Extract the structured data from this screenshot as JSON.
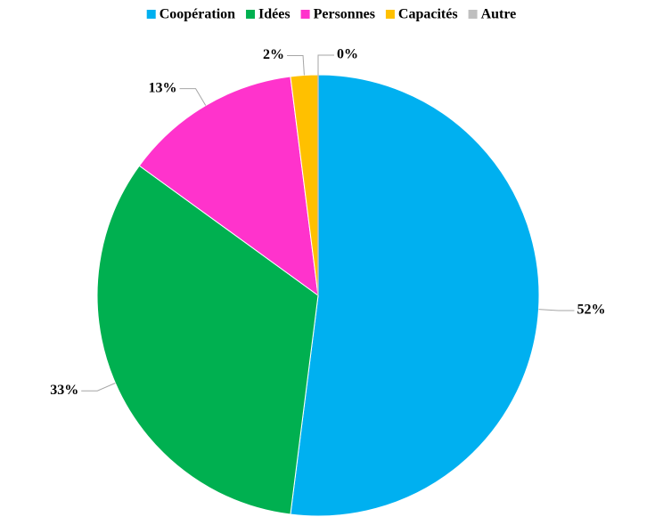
{
  "chart_data": {
    "type": "pie",
    "categories": [
      "Coopération",
      "Idées",
      "Personnes",
      "Capacités",
      "Autre"
    ],
    "values": [
      52,
      33,
      13,
      2,
      0
    ],
    "value_labels": [
      "52%",
      "33%",
      "13%",
      "2%",
      "0%"
    ],
    "colors": [
      "#00b0f0",
      "#00b050",
      "#ff33cc",
      "#ffc000",
      "#bfbfbf"
    ],
    "legend": "top"
  }
}
